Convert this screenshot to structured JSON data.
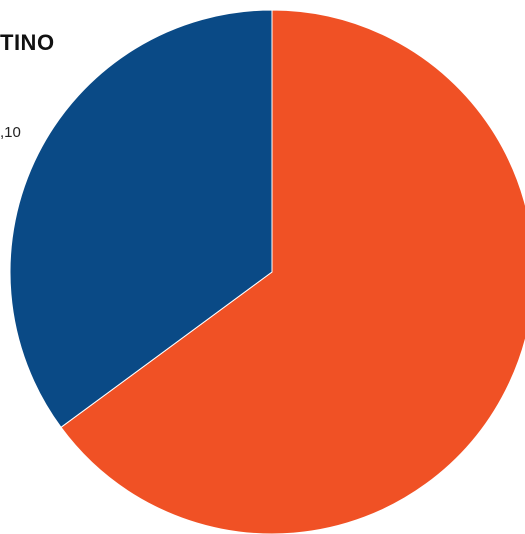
{
  "chart_data": {
    "type": "pie",
    "title": "TINO",
    "series": [
      {
        "values": [
          64.9,
          35.1
        ],
        "colors": [
          "#F05125",
          "#0A4A86"
        ]
      }
    ],
    "data_labels": [
      ",10"
    ],
    "start_angle_deg": 0,
    "direction": "clockwise",
    "legend": "none"
  }
}
